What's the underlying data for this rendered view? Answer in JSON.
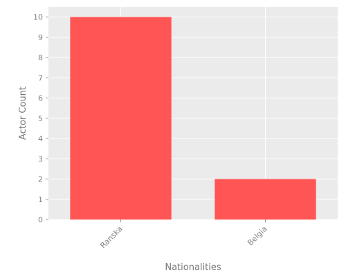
{
  "chart_data": {
    "type": "bar",
    "title": "",
    "xlabel": "Nationalities",
    "ylabel": "Actor Count",
    "categories": [
      "Ranska",
      "Belgia"
    ],
    "values": [
      10,
      2
    ],
    "ylim": [
      0,
      10.5
    ],
    "yticks": [
      0,
      1,
      2,
      3,
      4,
      5,
      6,
      7,
      8,
      9,
      10
    ],
    "grid": true,
    "legend": "none",
    "colors": {
      "bar": "#ff5555",
      "panel": "#ebebeb",
      "grid": "#ffffff",
      "text": "#808080"
    }
  }
}
